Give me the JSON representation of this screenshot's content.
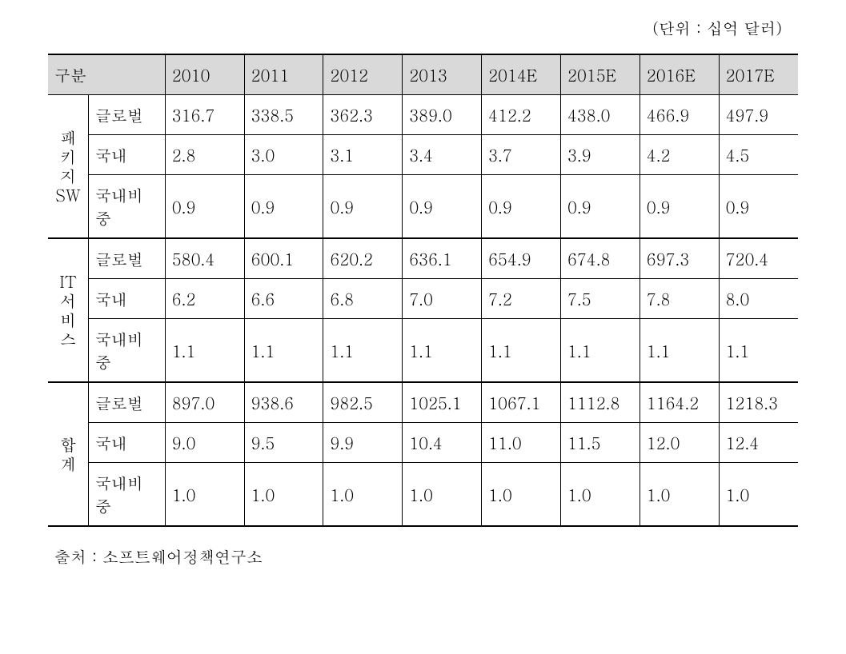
{
  "page": {
    "unit_label": "(단위 : 십억 달러)",
    "source": "출처 : 소프트웨어정책연구소"
  },
  "table": {
    "type": "table",
    "background_color": "#ffffff",
    "header_bg": "#d9d9d9",
    "border_color": "#000000",
    "font_size_pt": 15,
    "header": {
      "category_label": "구분",
      "years": [
        "2010",
        "2011",
        "2012",
        "2013",
        "2014E",
        "2015E",
        "2016E",
        "2017E"
      ]
    },
    "groups": [
      {
        "label": "패키지SW",
        "rows": [
          {
            "sub": "글로벌",
            "v": [
              "316.7",
              "338.5",
              "362.3",
              "389.0",
              "412.2",
              "438.0",
              "466.9",
              "497.9"
            ]
          },
          {
            "sub": "국내",
            "v": [
              "2.8",
              "3.0",
              "3.1",
              "3.4",
              "3.7",
              "3.9",
              "4.2",
              "4.5"
            ]
          },
          {
            "sub": "국내비중",
            "v": [
              "0.9",
              "0.9",
              "0.9",
              "0.9",
              "0.9",
              "0.9",
              "0.9",
              "0.9"
            ]
          }
        ]
      },
      {
        "label": "IT서비스",
        "rows": [
          {
            "sub": "글로벌",
            "v": [
              "580.4",
              "600.1",
              "620.2",
              "636.1",
              "654.9",
              "674.8",
              "697.3",
              "720.4"
            ]
          },
          {
            "sub": "국내",
            "v": [
              "6.2",
              "6.6",
              "6.8",
              "7.0",
              "7.2",
              "7.5",
              "7.8",
              "8.0"
            ]
          },
          {
            "sub": "국내비중",
            "v": [
              "1.1",
              "1.1",
              "1.1",
              "1.1",
              "1.1",
              "1.1",
              "1.1",
              "1.1"
            ]
          }
        ]
      },
      {
        "label": "합계",
        "rows": [
          {
            "sub": "글로벌",
            "v": [
              "897.0",
              "938.6",
              "982.5",
              "1025.1",
              "1067.1",
              "1112.8",
              "1164.2",
              "1218.3"
            ]
          },
          {
            "sub": "국내",
            "v": [
              "9.0",
              "9.5",
              "9.9",
              "10.4",
              "11.0",
              "11.5",
              "12.0",
              "12.4"
            ]
          },
          {
            "sub": "국내비중",
            "v": [
              "1.0",
              "1.0",
              "1.0",
              "1.0",
              "1.0",
              "1.0",
              "1.0",
              "1.0"
            ]
          }
        ]
      }
    ]
  }
}
